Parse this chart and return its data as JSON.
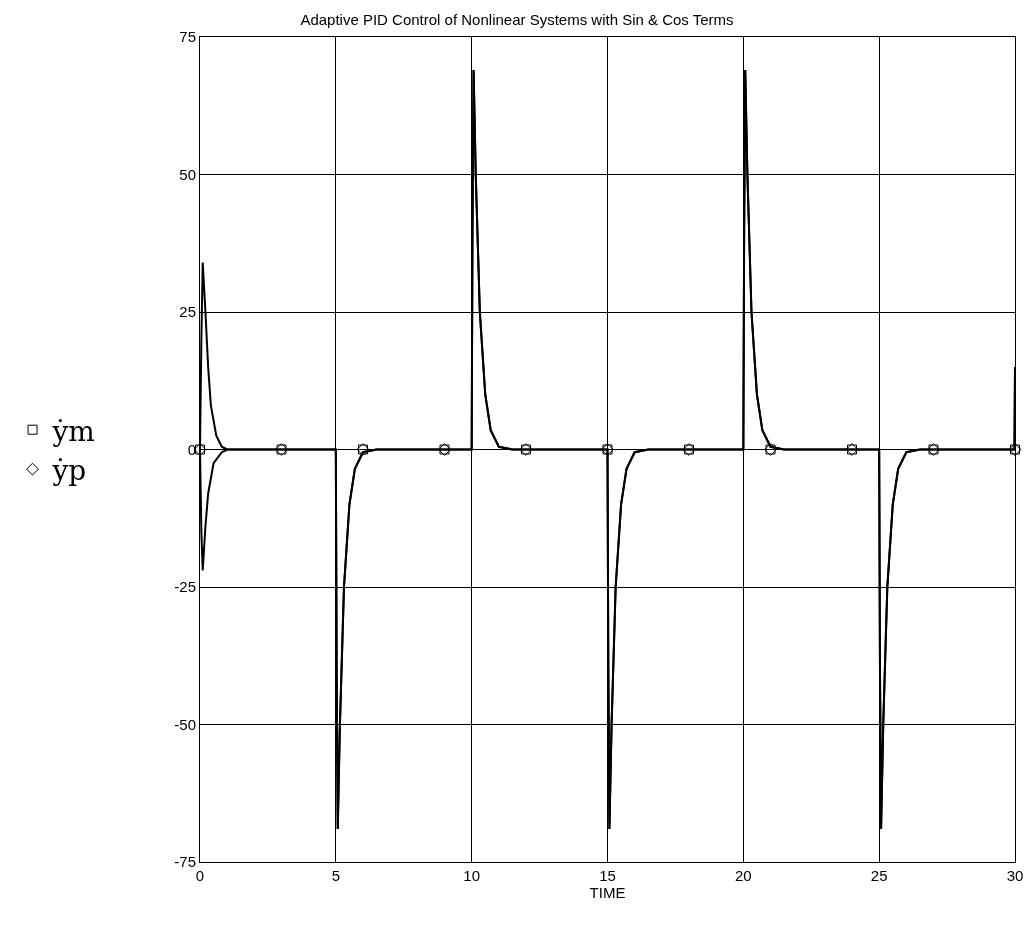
{
  "chart_data": {
    "type": "line",
    "title": "Adaptive PID Control of Nonlinear Systems with Sin & Cos Terms",
    "xlabel": "TIME",
    "series": [
      {
        "color": "#000000",
        "x": [
          0,
          0.05,
          0.1,
          0.2,
          0.3,
          0.4,
          0.6,
          0.8,
          1,
          3,
          5,
          5.03,
          5.07,
          5.15,
          5.3,
          5.5,
          5.7,
          6,
          6.5,
          9,
          10,
          10.03,
          10.07,
          10.15,
          10.3,
          10.5,
          10.7,
          11,
          11.5,
          12,
          15,
          15.03,
          15.07,
          15.15,
          15.3,
          15.5,
          15.7,
          16,
          16.5,
          18,
          20,
          20.03,
          20.07,
          20.15,
          20.3,
          20.5,
          20.7,
          21,
          21.5,
          24,
          25,
          25.03,
          25.07,
          25.15,
          25.3,
          25.5,
          25.7,
          26,
          26.5,
          27,
          29.98,
          30
        ],
        "values": [
          0,
          20,
          34,
          25,
          15,
          8,
          2.5,
          0.5,
          0,
          0,
          0,
          -40,
          -69,
          -50,
          -25,
          -10,
          -3.5,
          -0.5,
          0,
          0,
          0,
          40,
          69,
          50,
          25,
          10,
          3.5,
          0.5,
          0,
          0,
          0,
          -40,
          -69,
          -50,
          -25,
          -10,
          -3.5,
          -0.5,
          0,
          0,
          0,
          40,
          69,
          50,
          25,
          10,
          3.5,
          0.5,
          0,
          0,
          0,
          -40,
          -69,
          -50,
          -25,
          -10,
          -3.5,
          -0.5,
          0,
          0,
          0,
          15
        ]
      },
      {
        "color": "#000000",
        "x": [
          0,
          0.05,
          0.1,
          0.2,
          0.3,
          0.5,
          0.8,
          1,
          3,
          5,
          5.03,
          5.07,
          5.15,
          5.3,
          5.5,
          5.7,
          6,
          6.5,
          9,
          10,
          10.03,
          10.07,
          10.15,
          10.3,
          10.5,
          10.7,
          11,
          11.5,
          12,
          15,
          15.03,
          15.07,
          15.15,
          15.3,
          15.5,
          15.7,
          16,
          16.5,
          18,
          20,
          20.03,
          20.07,
          20.15,
          20.3,
          20.5,
          20.7,
          21,
          21.5,
          24,
          25,
          25.03,
          25.07,
          25.15,
          25.3,
          25.5,
          25.7,
          26,
          26.5,
          27,
          29.98,
          30
        ],
        "values": [
          0,
          -15,
          -22,
          -14,
          -8,
          -2.5,
          -0.5,
          0,
          0,
          0,
          -40,
          -69,
          -50,
          -25,
          -10,
          -3.5,
          -0.5,
          0,
          0,
          0,
          40,
          69,
          50,
          25,
          10,
          3.5,
          0.5,
          0,
          0,
          0,
          -40,
          -69,
          -50,
          -25,
          -10,
          -3.5,
          -0.5,
          0,
          0,
          0,
          40,
          69,
          50,
          25,
          10,
          3.5,
          0.5,
          0,
          0,
          0,
          -40,
          -69,
          -50,
          -25,
          -10,
          -3.5,
          -0.5,
          0,
          0,
          0,
          15
        ]
      },
      {
        "name": "ẏm",
        "type": "scatter",
        "color": "#000000",
        "marker": "square",
        "x": [
          0,
          3,
          6,
          9,
          12,
          15,
          18,
          21,
          24,
          27,
          30
        ],
        "values": [
          0,
          0,
          0,
          0,
          0,
          0,
          0,
          0,
          0,
          0,
          0
        ]
      },
      {
        "name": "ẏp",
        "type": "scatter",
        "color": "#000000",
        "marker": "diamond",
        "x": [
          0,
          3,
          6,
          9,
          12,
          15,
          18,
          21,
          24,
          27,
          30
        ],
        "values": [
          0,
          0,
          0,
          0,
          0,
          0,
          0,
          0,
          0,
          0,
          0
        ]
      }
    ],
    "xlim": [
      0,
      30
    ],
    "xticks": [
      0,
      5,
      10,
      15,
      20,
      25,
      30
    ],
    "ylim": [
      -75,
      75
    ],
    "yticks": [
      -75,
      -50,
      -25,
      0,
      25,
      50,
      75
    ],
    "grid": true,
    "legend": "left",
    "line_style": "solid"
  }
}
